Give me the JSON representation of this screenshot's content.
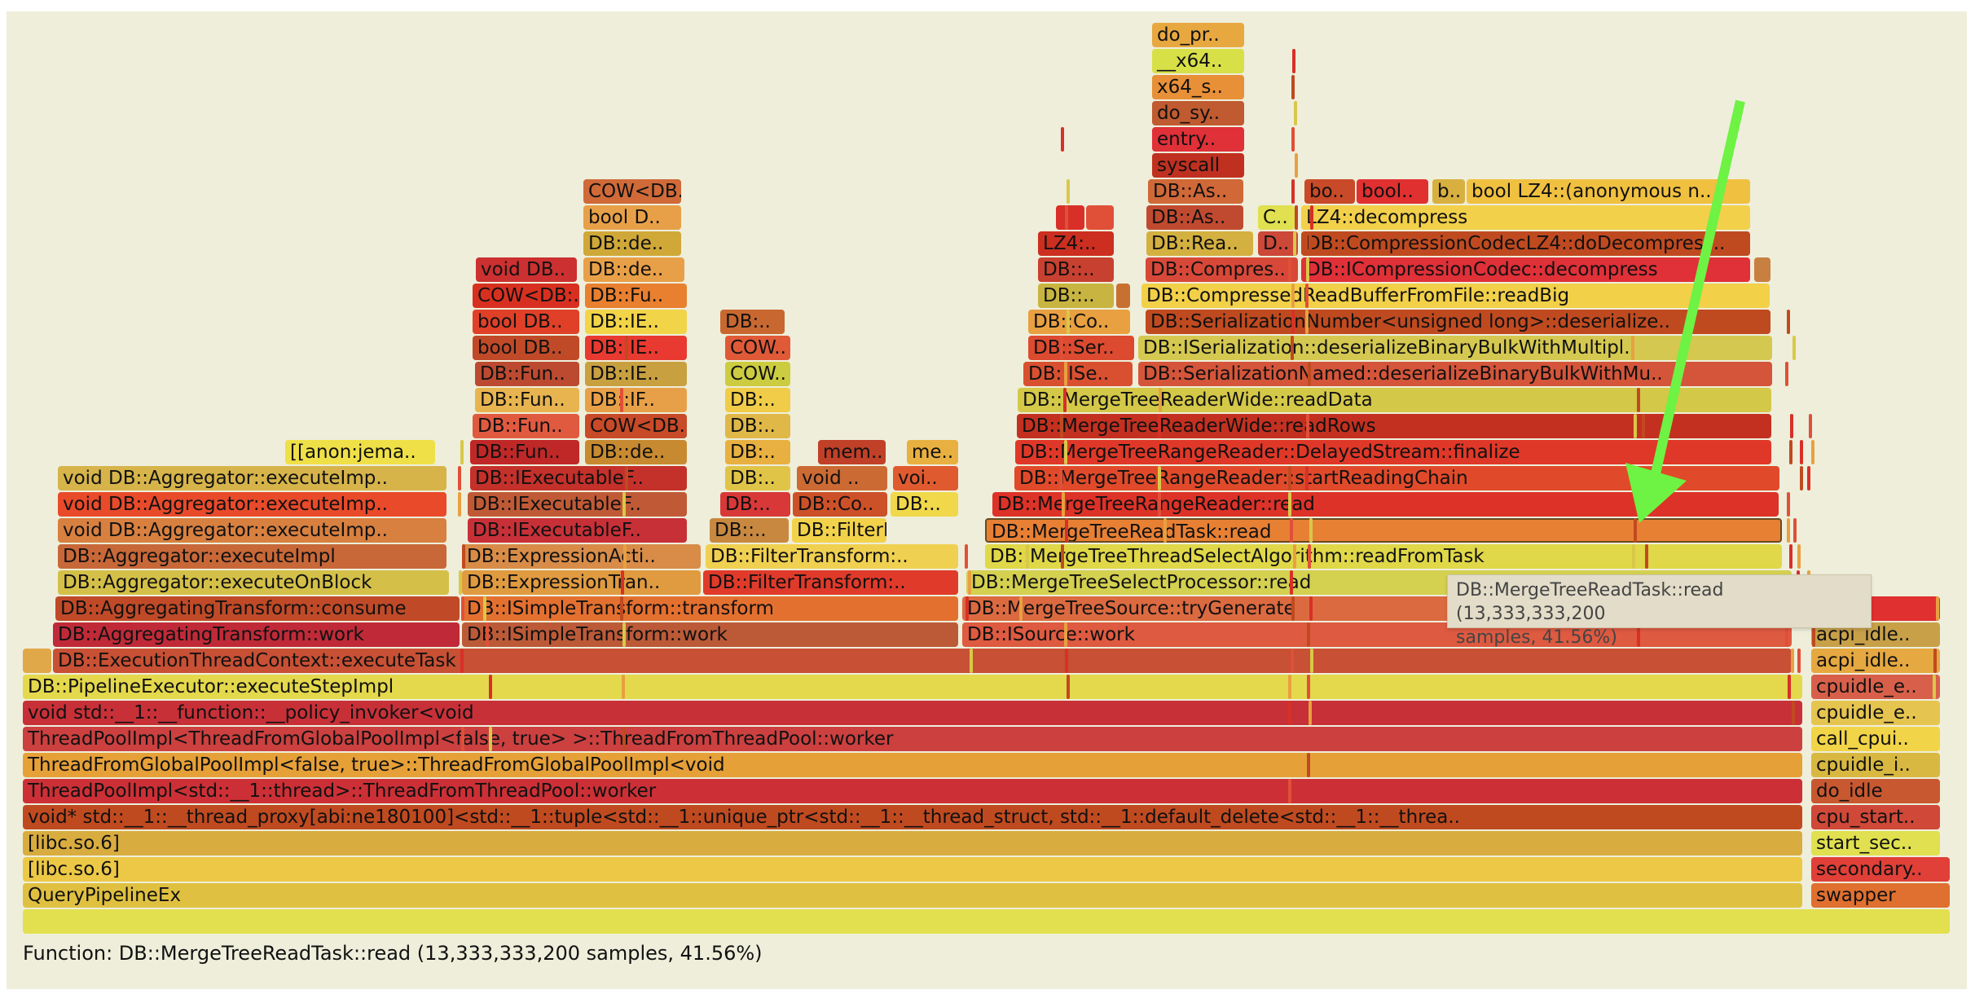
{
  "status": {
    "text": "Function: DB::MergeTreeReadTask::read (13,333,333,200 samples, 41.56%)"
  },
  "tooltip": {
    "line1": "DB::MergeTreeReadTask::read (13,333,333,200",
    "line2": "samples, 41.56%)"
  },
  "highlighted_frame": "DB::MergeTreeReadTask::read",
  "annotation_arrow_color": "#6ef244",
  "frames": [
    {
      "label": "",
      "color": "#e2e04e"
    },
    {
      "label": "QueryPipelineEx",
      "color": "#e0c040"
    },
    {
      "label": "swapper",
      "color": "#e07030"
    },
    {
      "label": "[libc.so.6]",
      "color": "#ecc846"
    },
    {
      "label": "secondary..",
      "color": "#e04038"
    },
    {
      "label": "[libc.so.6]",
      "color": "#d9ac40"
    },
    {
      "label": "start_sec..",
      "color": "#e0e050"
    },
    {
      "label": "void* std::__1::__thread_proxy[abi:ne180100]<std::__1::tuple<std::__1::unique_ptr<std::__1::__thread_struct, std::__1::default_delete<std::__1::__threa..",
      "color": "#c04a20"
    },
    {
      "label": "cpu_start..",
      "color": "#d04838"
    },
    {
      "label": "ThreadPoolImpl<std::__1::thread>::ThreadFromThreadPool::worker",
      "color": "#cc3036"
    },
    {
      "label": "do_idle",
      "color": "#c85830"
    },
    {
      "label": "ThreadFromGlobalPoolImpl<false, true>::ThreadFromGlobalPoolImpl<void",
      "color": "#e6a038"
    },
    {
      "label": "cpuidle_i..",
      "color": "#d8b840"
    },
    {
      "label": "ThreadPoolImpl<ThreadFromGlobalPoolImpl<false, true> >::ThreadFromThreadPool::worker",
      "color": "#cc4040"
    },
    {
      "label": "call_cpui..",
      "color": "#f2d448"
    },
    {
      "label": "void std::__1::__function::__policy_invoker<void",
      "color": "#c83038"
    },
    {
      "label": "cpuidle_e..",
      "color": "#e6c450"
    },
    {
      "label": "DB::PipelineExecutor::executeStepImpl",
      "color": "#e4d84c"
    },
    {
      "label": "cpuidle_e..",
      "color": "#d8604a"
    },
    {
      "label": "",
      "color": "#e0a848"
    },
    {
      "label": "DB::ExecutionThreadContext::executeTask",
      "color": "#c85034"
    },
    {
      "label": "acpi_idle..",
      "color": "#e6a840"
    },
    {
      "label": "DB::AggregatingTransform::work",
      "color": "#c02a38"
    },
    {
      "label": "DB::ISimpleTransform::work",
      "color": "#bc5a38"
    },
    {
      "label": "DB::ISource::work",
      "color": "#de5a40"
    },
    {
      "label": "acpi_idle..",
      "color": "#c8a048"
    },
    {
      "label": "DB::AggregatingTransform::consume",
      "color": "#c04a28"
    },
    {
      "label": "DB::ISimpleTransform::transform",
      "color": "#e47030"
    },
    {
      "label": "DB::MergeTreeSource::tryGenerate",
      "color": "#dc6a40"
    },
    {
      "label": "tive..",
      "color": "#e03030"
    },
    {
      "label": "DB::Aggregator::executeOnBlock",
      "color": "#d4c048"
    },
    {
      "label": "DB::ExpressionTran..",
      "color": "#e09a40"
    },
    {
      "label": "DB::FilterTransform:..",
      "color": "#e03a2a"
    },
    {
      "label": "DB::MergeTreeSelectProcessor::read",
      "color": "#d4d050"
    },
    {
      "label": "DB::Aggregator::executeImpl",
      "color": "#c86838"
    },
    {
      "label": "DB::ExpressionActi..",
      "color": "#d88c48"
    },
    {
      "label": "DB::FilterTransform:..",
      "color": "#f0d050"
    },
    {
      "label": "DB::MergeTreeThreadSelectAlgorithm::readFromTask",
      "color": "#e0d848"
    },
    {
      "label": "void DB::Aggregator::executeImp..",
      "color": "#d88040"
    },
    {
      "label": "DB::IExecutableF..",
      "color": "#c83038"
    },
    {
      "label": "DB::..",
      "color": "#c88840"
    },
    {
      "label": "DB::FilterDe..",
      "color": "#f2d24a"
    },
    {
      "label": "DB::MergeTreeReadTask::read",
      "color": "#e88034"
    },
    {
      "label": "void DB::Aggregator::executeImp..",
      "color": "#e84a2a"
    },
    {
      "label": "DB::IExecutableF..",
      "color": "#c05a36"
    },
    {
      "label": "DB:..",
      "color": "#d83838"
    },
    {
      "label": "DB::Co..",
      "color": "#cc5028"
    },
    {
      "label": "DB:..",
      "color": "#f0d84a"
    },
    {
      "label": "DB::MergeTreeRangeReader::read",
      "color": "#dd3228"
    },
    {
      "label": "void DB::Aggregator::executeImp..",
      "color": "#d6b44a"
    },
    {
      "label": "DB::IExecutableF..",
      "color": "#c4302a"
    },
    {
      "label": "DB:..",
      "color": "#e0c448"
    },
    {
      "label": "void ..",
      "color": "#cc6a34"
    },
    {
      "label": "voi..",
      "color": "#e05a30"
    },
    {
      "label": "DB::MergeTreeRangeReader::startReadingChain",
      "color": "#e04a2a"
    },
    {
      "label": "[[anon:jema..",
      "color": "#f0e048"
    },
    {
      "label": "DB::Fun..",
      "color": "#c02828"
    },
    {
      "label": "DB::de..",
      "color": "#c88a30"
    },
    {
      "label": "DB:..",
      "color": "#e8b040"
    },
    {
      "label": "mem..",
      "color": "#c04028"
    },
    {
      "label": "me..",
      "color": "#e8b040"
    },
    {
      "label": "DB::MergeTreeRangeReader::DelayedStream::finalize",
      "color": "#e03828"
    },
    {
      "label": "DB::Fun..",
      "color": "#e05a40"
    },
    {
      "label": "COW<DB..",
      "color": "#c84a28"
    },
    {
      "label": "DB:..",
      "color": "#e0b848"
    },
    {
      "label": "DB::MergeTreeReaderWide::readRows",
      "color": "#c43020"
    },
    {
      "label": "DB::Fun..",
      "color": "#e8b450"
    },
    {
      "label": "DB::IF..",
      "color": "#e8a048"
    },
    {
      "label": "DB:..",
      "color": "#f0cc48"
    },
    {
      "label": "DB::MergeTreeReaderWide::readData",
      "color": "#d4c848"
    },
    {
      "label": "DB::Fun..",
      "color": "#bc4a30"
    },
    {
      "label": "DB::IE..",
      "color": "#c8a040"
    },
    {
      "label": "COW..",
      "color": "#cccc40"
    },
    {
      "label": "DB::ISe..",
      "color": "#d85030"
    },
    {
      "label": "DB::SerializationNamed::deserializeBinaryBulkWithMu..",
      "color": "#d4553a"
    },
    {
      "label": "bool DB..",
      "color": "#c04a28"
    },
    {
      "label": "DB::IE..",
      "color": "#e83a30"
    },
    {
      "label": "COW..",
      "color": "#e05a38"
    },
    {
      "label": "DB::Ser..",
      "color": "#dc4a30"
    },
    {
      "label": "DB::ISerialization::deserializeBinaryBulkWithMultipl..",
      "color": "#d4c850"
    },
    {
      "label": "bool DB..",
      "color": "#e04028"
    },
    {
      "label": "DB::IE..",
      "color": "#f2d448"
    },
    {
      "label": "DB:..",
      "color": "#c86830"
    },
    {
      "label": "DB::Co..",
      "color": "#e8a040"
    },
    {
      "label": "DB::SerializationNumber<unsigned long>::deserialize..",
      "color": "#c04a20"
    },
    {
      "label": "COW<DB:..",
      "color": "#d83020"
    },
    {
      "label": "DB::Fu..",
      "color": "#e88030"
    },
    {
      "label": "DB::..",
      "color": "#c8b440"
    },
    {
      "label": "",
      "color": "#c87030"
    },
    {
      "label": "DB::CompressedReadBufferFromFile::readBig",
      "color": "#f2d048"
    },
    {
      "label": "void DB..",
      "color": "#cc3030"
    },
    {
      "label": "DB::de..",
      "color": "#e8a048"
    },
    {
      "label": "DB::..",
      "color": "#c84030"
    },
    {
      "label": "DB::Compres..",
      "color": "#d84838"
    },
    {
      "label": "DB::ICompressionCodec::decompress",
      "color": "#e03038"
    },
    {
      "label": "",
      "color": "#c88040"
    },
    {
      "label": "DB::de..",
      "color": "#d0a838"
    },
    {
      "label": "LZ4:..",
      "color": "#cc2e20"
    },
    {
      "label": "DB::Rea..",
      "color": "#d4b040"
    },
    {
      "label": "D..",
      "color": "#cc4838"
    },
    {
      "label": "DB::CompressionCodecLZ4::doDecompress..",
      "color": "#c04a20"
    },
    {
      "label": "bool D..",
      "color": "#e8a048"
    },
    {
      "label": "",
      "color": "#d83028"
    },
    {
      "label": "",
      "color": "#e05038"
    },
    {
      "label": "DB::As..",
      "color": "#c04a30"
    },
    {
      "label": "C..",
      "color": "#e0e050"
    },
    {
      "label": "LZ4::decompress",
      "color": "#f2d04a"
    },
    {
      "label": "COW<DB..",
      "color": "#d06a38"
    },
    {
      "label": "DB::As..",
      "color": "#d06838"
    },
    {
      "label": "bo..",
      "color": "#c84a28"
    },
    {
      "label": "bool..",
      "color": "#e03030"
    },
    {
      "label": "b..",
      "color": "#d8b040"
    },
    {
      "label": "bool LZ4::(anonymous n..",
      "color": "#f0c040"
    },
    {
      "label": "syscall",
      "color": "#c03020"
    },
    {
      "label": "entry..",
      "color": "#e03038"
    },
    {
      "label": "do_sy..",
      "color": "#c05a30"
    },
    {
      "label": "x64_s..",
      "color": "#e89038"
    },
    {
      "label": "__x64..",
      "color": "#d8e048"
    },
    {
      "label": "do_pr..",
      "color": "#e8a840"
    }
  ]
}
